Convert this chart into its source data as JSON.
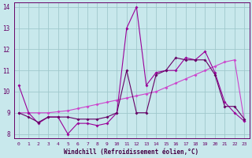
{
  "xlabel": "Windchill (Refroidissement éolien,°C)",
  "xlim": [
    -0.5,
    23.5
  ],
  "ylim": [
    7.8,
    14.2
  ],
  "yticks": [
    8,
    9,
    10,
    11,
    12,
    13,
    14
  ],
  "xticks": [
    0,
    1,
    2,
    3,
    4,
    5,
    6,
    7,
    8,
    9,
    10,
    11,
    12,
    13,
    14,
    15,
    16,
    17,
    18,
    19,
    20,
    21,
    22,
    23
  ],
  "background_color": "#c8e8ec",
  "grid_color": "#a0c8cc",
  "line_color1": "#990099",
  "line_color2": "#cc44cc",
  "line_color3": "#660066",
  "series1_x": [
    0,
    1,
    2,
    3,
    4,
    5,
    6,
    7,
    8,
    9,
    10,
    11,
    12,
    13,
    14,
    15,
    16,
    17,
    18,
    19,
    20,
    21,
    22,
    23
  ],
  "series1_y": [
    10.3,
    9.0,
    8.5,
    8.8,
    8.8,
    8.0,
    8.5,
    8.5,
    8.4,
    8.5,
    9.0,
    13.0,
    14.0,
    10.3,
    10.9,
    11.0,
    11.0,
    11.6,
    11.5,
    11.9,
    10.9,
    9.5,
    9.0,
    8.6
  ],
  "series2_x": [
    0,
    1,
    2,
    3,
    4,
    5,
    6,
    7,
    8,
    9,
    10,
    11,
    12,
    13,
    14,
    15,
    16,
    17,
    18,
    19,
    20,
    21,
    22,
    23
  ],
  "series2_y": [
    9.0,
    9.0,
    9.0,
    9.0,
    9.05,
    9.1,
    9.2,
    9.3,
    9.4,
    9.5,
    9.6,
    9.7,
    9.8,
    9.9,
    10.0,
    10.2,
    10.4,
    10.6,
    10.8,
    11.0,
    11.2,
    11.4,
    11.5,
    8.6
  ],
  "series3_x": [
    0,
    1,
    2,
    3,
    4,
    5,
    6,
    7,
    8,
    9,
    10,
    11,
    12,
    13,
    14,
    15,
    16,
    17,
    18,
    19,
    20,
    21,
    22,
    23
  ],
  "series3_y": [
    9.0,
    8.8,
    8.55,
    8.8,
    8.8,
    8.8,
    8.7,
    8.7,
    8.7,
    8.8,
    9.0,
    11.0,
    9.0,
    9.0,
    10.8,
    11.0,
    11.6,
    11.5,
    11.5,
    11.5,
    10.8,
    9.3,
    9.3,
    8.7
  ]
}
